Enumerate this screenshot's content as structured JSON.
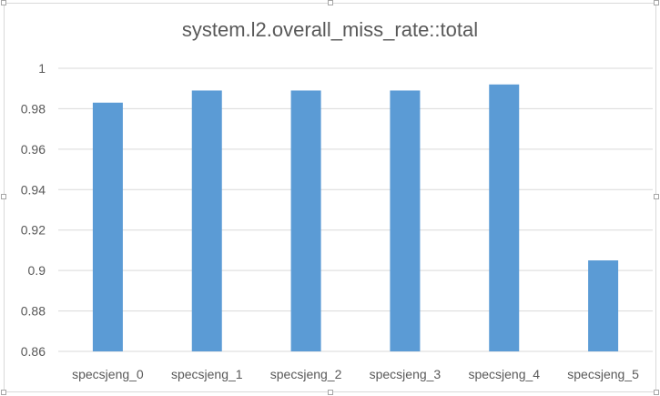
{
  "chart_data": {
    "type": "bar",
    "title": "system.l2.overall_miss_rate::total",
    "categories": [
      "specsjeng_0",
      "specsjeng_1",
      "specsjeng_2",
      "specsjeng_3",
      "specsjeng_4",
      "specsjeng_5"
    ],
    "values": [
      0.983,
      0.989,
      0.989,
      0.989,
      0.992,
      0.905
    ],
    "ylim": [
      0.86,
      1.0
    ],
    "yticks": [
      "0.86",
      "0.88",
      "0.9",
      "0.92",
      "0.94",
      "0.96",
      "0.98",
      "1"
    ],
    "grid": true,
    "legend": "none",
    "colors": {
      "bar": "#5b9bd5",
      "grid": "#d9d9d9",
      "text": "#595959"
    }
  }
}
